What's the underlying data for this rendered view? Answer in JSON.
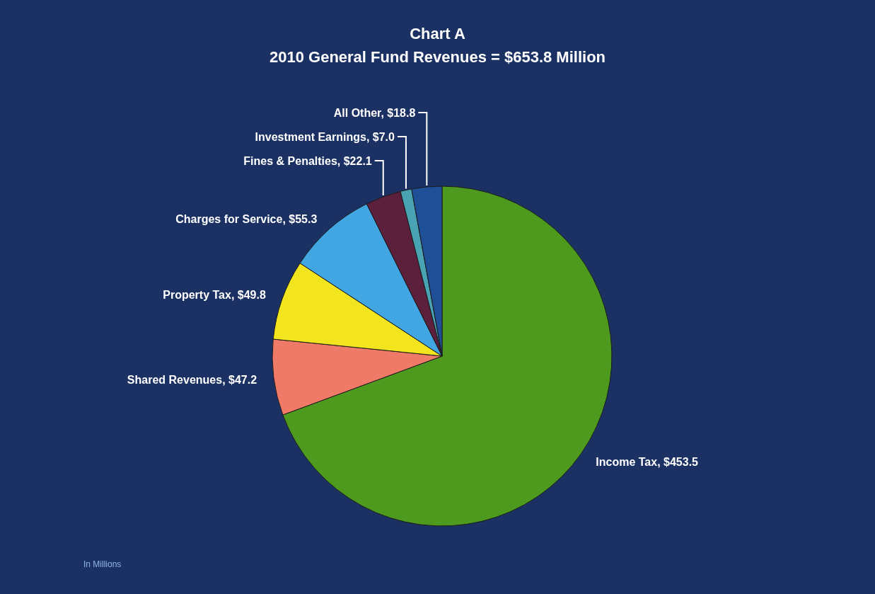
{
  "chart_data": {
    "type": "pie",
    "title": "Chart A",
    "subtitle": "2010 General Fund Revenues = $653.8 Million",
    "categories": [
      "Income Tax",
      "Shared Revenues",
      "Property Tax",
      "Charges for Service",
      "Fines & Penalties",
      "Investment Earnings",
      "All Other"
    ],
    "values": [
      453.5,
      47.2,
      49.8,
      55.3,
      22.1,
      7.0,
      18.8
    ],
    "value_labels": [
      "$453.5",
      "$47.2",
      "$49.8",
      "$55.3",
      "$22.1",
      "$7.0",
      "$18.8"
    ],
    "colors": [
      "#4e9a1e",
      "#f07a68",
      "#f2e41e",
      "#42a6e2",
      "#5c1f3c",
      "#4aa3b3",
      "#1f4f96"
    ],
    "annotations": [
      "In Millions"
    ]
  }
}
